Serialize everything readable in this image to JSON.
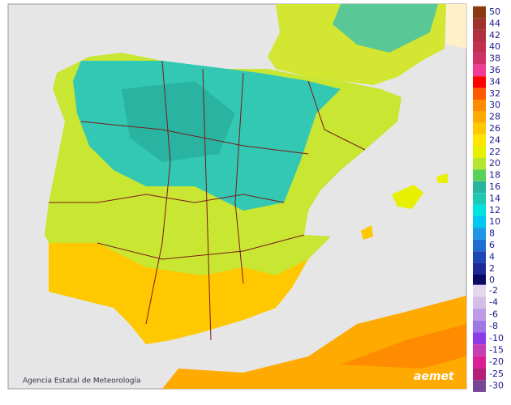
{
  "map": {
    "credit": "Agencia Estatal de Meteorología",
    "logo": "aemet",
    "legend": {
      "upper": [
        {
          "value": 50,
          "color": "#8b3a0f"
        },
        {
          "value": 44,
          "color": "#a0302a"
        },
        {
          "value": 42,
          "color": "#b03040"
        },
        {
          "value": 40,
          "color": "#c03050"
        },
        {
          "value": 38,
          "color": "#d03068"
        },
        {
          "value": 36,
          "color": "#f03c96"
        },
        {
          "value": 34,
          "color": "#ff0000"
        },
        {
          "value": 32,
          "color": "#ff5a00"
        },
        {
          "value": 30,
          "color": "#ff8c00"
        },
        {
          "value": 28,
          "color": "#ffaa00"
        },
        {
          "value": 26,
          "color": "#ffc800"
        },
        {
          "value": 24,
          "color": "#ffe600"
        },
        {
          "value": 22,
          "color": "#e6f000"
        },
        {
          "value": 20,
          "color": "#b4e632"
        },
        {
          "value": 18,
          "color": "#5ad25a"
        },
        {
          "value": 16,
          "color": "#28b4a0"
        },
        {
          "value": 14,
          "color": "#1ec8b4"
        },
        {
          "value": 12,
          "color": "#00e1e1"
        },
        {
          "value": 10,
          "color": "#00c8f0"
        },
        {
          "value": 8,
          "color": "#1e96e6"
        },
        {
          "value": 6,
          "color": "#1e6ed2"
        },
        {
          "value": 4,
          "color": "#1e46b4"
        },
        {
          "value": 2,
          "color": "#1e2896"
        },
        {
          "value": 0,
          "color": "#0a0a64"
        }
      ],
      "lower": [
        {
          "value": -2,
          "color": "#e6d7f0"
        },
        {
          "value": -4,
          "color": "#d2bee6"
        },
        {
          "value": -6,
          "color": "#be9be6"
        },
        {
          "value": -8,
          "color": "#a078e6"
        },
        {
          "value": -10,
          "color": "#8c3ce6"
        },
        {
          "value": -15,
          "color": "#c83cb4"
        },
        {
          "value": -20,
          "color": "#dc1e96"
        },
        {
          "value": -25,
          "color": "#b41e78"
        },
        {
          "value": -30,
          "color": "#784696"
        }
      ]
    }
  }
}
